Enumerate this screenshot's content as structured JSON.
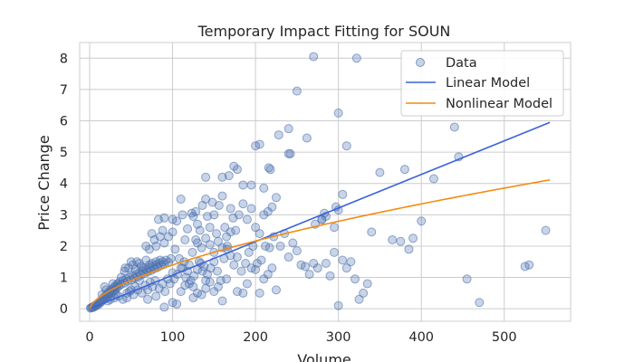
{
  "chart_data": {
    "type": "scatter",
    "title": "Temporary Impact Fitting for SOUN",
    "xlabel": "Volume",
    "ylabel": "Price Change",
    "xlim": [
      -12,
      580
    ],
    "ylim": [
      -0.4,
      8.5
    ],
    "xticks": [
      0,
      100,
      200,
      300,
      400,
      500
    ],
    "yticks": [
      0,
      1,
      2,
      3,
      4,
      5,
      6,
      7,
      8
    ],
    "grid": true,
    "legend_position": "top-right",
    "legend": [
      "Data",
      "Linear Model",
      "Nonlinear Model"
    ],
    "colors": {
      "data": "#4c72b0",
      "linear": "#3a63d8",
      "nonlinear": "#f28c12",
      "grid": "#cccccc",
      "axes_edge": "#cccccc"
    },
    "series": [
      {
        "name": "Data",
        "kind": "scatter",
        "points": [
          [
            1,
            0.02
          ],
          [
            2,
            0.03
          ],
          [
            3,
            0.05
          ],
          [
            4,
            0.04
          ],
          [
            5,
            0.06
          ],
          [
            6,
            0.1
          ],
          [
            7,
            0.08
          ],
          [
            8,
            0.12
          ],
          [
            9,
            0.15
          ],
          [
            10,
            0.12
          ],
          [
            11,
            0.2
          ],
          [
            12,
            0.18
          ],
          [
            13,
            0.25
          ],
          [
            14,
            0.22
          ],
          [
            15,
            0.3
          ],
          [
            16,
            0.28
          ],
          [
            17,
            0.35
          ],
          [
            18,
            0.32
          ],
          [
            19,
            0.4
          ],
          [
            20,
            0.36
          ],
          [
            21,
            0.42
          ],
          [
            22,
            0.5
          ],
          [
            23,
            0.45
          ],
          [
            24,
            0.55
          ],
          [
            25,
            0.48
          ],
          [
            26,
            0.6
          ],
          [
            27,
            0.52
          ],
          [
            28,
            0.65
          ],
          [
            29,
            0.58
          ],
          [
            30,
            0.7
          ],
          [
            31,
            0.6
          ],
          [
            32,
            0.75
          ],
          [
            33,
            0.68
          ],
          [
            34,
            0.8
          ],
          [
            35,
            0.72
          ],
          [
            36,
            0.85
          ],
          [
            38,
            0.78
          ],
          [
            40,
            0.9
          ],
          [
            42,
            0.82
          ],
          [
            44,
            0.95
          ],
          [
            46,
            0.88
          ],
          [
            48,
            1.0
          ],
          [
            50,
            0.92
          ],
          [
            52,
            1.05
          ],
          [
            54,
            0.98
          ],
          [
            56,
            1.1
          ],
          [
            58,
            1.02
          ],
          [
            60,
            1.15
          ],
          [
            62,
            1.08
          ],
          [
            64,
            1.2
          ],
          [
            66,
            1.12
          ],
          [
            68,
            1.25
          ],
          [
            70,
            1.18
          ],
          [
            72,
            1.3
          ],
          [
            74,
            1.22
          ],
          [
            76,
            1.35
          ],
          [
            78,
            1.28
          ],
          [
            80,
            1.4
          ],
          [
            82,
            1.32
          ],
          [
            84,
            1.45
          ],
          [
            86,
            1.38
          ],
          [
            88,
            1.5
          ],
          [
            90,
            1.42
          ],
          [
            92,
            1.55
          ],
          [
            95,
            1.48
          ],
          [
            98,
            1.6
          ],
          [
            15,
            0.45
          ],
          [
            20,
            0.6
          ],
          [
            25,
            0.3
          ],
          [
            30,
            0.35
          ],
          [
            35,
            0.4
          ],
          [
            40,
            0.3
          ],
          [
            45,
            0.5
          ],
          [
            50,
            0.6
          ],
          [
            55,
            0.7
          ],
          [
            60,
            0.9
          ],
          [
            18,
            0.7
          ],
          [
            22,
            0.25
          ],
          [
            28,
            0.8
          ],
          [
            32,
            0.45
          ],
          [
            38,
            1.0
          ],
          [
            42,
            1.2
          ],
          [
            47,
            1.3
          ],
          [
            52,
            1.4
          ],
          [
            57,
            1.5
          ],
          [
            62,
            1.35
          ],
          [
            43,
            1.3
          ],
          [
            50,
            1.5
          ],
          [
            55,
            1.25
          ],
          [
            60,
            1.45
          ],
          [
            65,
            1.3
          ],
          [
            68,
            1.55
          ],
          [
            72,
            1.4
          ],
          [
            75,
            1.45
          ],
          [
            80,
            1.5
          ],
          [
            85,
            1.55
          ],
          [
            45,
            0.35
          ],
          [
            48,
            0.55
          ],
          [
            53,
            0.45
          ],
          [
            58,
            0.6
          ],
          [
            63,
            0.5
          ],
          [
            67,
            0.75
          ],
          [
            70,
            0.6
          ],
          [
            73,
            0.85
          ],
          [
            76,
            0.7
          ],
          [
            79,
            0.9
          ],
          [
            84,
            0.65
          ],
          [
            88,
            0.8
          ],
          [
            91,
            0.55
          ],
          [
            94,
            0.95
          ],
          [
            97,
            0.8
          ],
          [
            68,
            2.0
          ],
          [
            72,
            1.9
          ],
          [
            75,
            2.4
          ],
          [
            78,
            2.2
          ],
          [
            80,
            2.0
          ],
          [
            85,
            2.3
          ],
          [
            88,
            2.5
          ],
          [
            90,
            2.1
          ],
          [
            95,
            2.3
          ],
          [
            100,
            2.45
          ],
          [
            83,
            2.85
          ],
          [
            90,
            2.9
          ],
          [
            100,
            2.85
          ],
          [
            105,
            2.8
          ],
          [
            110,
            3.5
          ],
          [
            112,
            3.0
          ],
          [
            115,
            2.2
          ],
          [
            118,
            2.55
          ],
          [
            70,
            0.3
          ],
          [
            80,
            0.4
          ],
          [
            90,
            0.05
          ],
          [
            100,
            0.2
          ],
          [
            105,
            0.15
          ],
          [
            110,
            0.55
          ],
          [
            115,
            0.75
          ],
          [
            120,
            0.8
          ],
          [
            125,
            0.35
          ],
          [
            103,
            1.9
          ],
          [
            108,
            1.6
          ],
          [
            112,
            1.3
          ],
          [
            116,
            1.0
          ],
          [
            120,
            1.4
          ],
          [
            124,
            1.8
          ],
          [
            128,
            2.2
          ],
          [
            132,
            1.5
          ],
          [
            136,
            1.2
          ],
          [
            140,
            0.9
          ],
          [
            100,
            1.15
          ],
          [
            102,
            0.95
          ],
          [
            106,
            1.1
          ],
          [
            110,
            1.3
          ],
          [
            114,
            1.5
          ],
          [
            118,
            1.2
          ],
          [
            122,
            0.9
          ],
          [
            126,
            1.05
          ],
          [
            130,
            1.25
          ],
          [
            134,
            1.45
          ],
          [
            138,
            1.35
          ],
          [
            142,
            1.1
          ],
          [
            146,
            1.3
          ],
          [
            150,
            1.5
          ],
          [
            154,
            1.2
          ],
          [
            158,
            0.9
          ],
          [
            162,
            1.6
          ],
          [
            166,
            1.9
          ],
          [
            170,
            1.7
          ],
          [
            174,
            1.4
          ],
          [
            123,
            3.05
          ],
          [
            125,
            2.95
          ],
          [
            128,
            3.1
          ],
          [
            130,
            2.7
          ],
          [
            133,
            2.5
          ],
          [
            136,
            3.3
          ],
          [
            140,
            3.5
          ],
          [
            142,
            2.95
          ],
          [
            145,
            2.6
          ],
          [
            148,
            3.4
          ],
          [
            150,
            3.0
          ],
          [
            153,
            2.4
          ],
          [
            156,
            3.3
          ],
          [
            160,
            3.6
          ],
          [
            163,
            2.6
          ],
          [
            166,
            2.0
          ],
          [
            170,
            3.2
          ],
          [
            173,
            2.9
          ],
          [
            176,
            2.5
          ],
          [
            140,
            4.2
          ],
          [
            160,
            4.2
          ],
          [
            168,
            4.25
          ],
          [
            174,
            4.55
          ],
          [
            178,
            4.45
          ],
          [
            130,
            2.1
          ],
          [
            135,
            1.95
          ],
          [
            140,
            2.25
          ],
          [
            145,
            2.05
          ],
          [
            150,
            1.8
          ],
          [
            155,
            2.15
          ],
          [
            160,
            1.95
          ],
          [
            165,
            2.3
          ],
          [
            170,
            2.45
          ],
          [
            125,
            0.7
          ],
          [
            130,
            0.5
          ],
          [
            135,
            0.45
          ],
          [
            140,
            0.65
          ],
          [
            145,
            0.85
          ],
          [
            150,
            0.55
          ],
          [
            155,
            0.7
          ],
          [
            160,
            0.25
          ],
          [
            165,
            0.95
          ],
          [
            178,
            0.55
          ],
          [
            185,
            0.5
          ],
          [
            190,
            0.8
          ],
          [
            195,
            1.3
          ],
          [
            200,
            1.25
          ],
          [
            205,
            0.5
          ],
          [
            210,
            0.95
          ],
          [
            215,
            1.1
          ],
          [
            220,
            1.3
          ],
          [
            225,
            0.6
          ],
          [
            178,
            1.65
          ],
          [
            183,
            1.2
          ],
          [
            188,
            1.45
          ],
          [
            192,
            1.8
          ],
          [
            197,
            2.0
          ],
          [
            202,
            1.45
          ],
          [
            207,
            1.55
          ],
          [
            212,
            2.0
          ],
          [
            217,
            1.95
          ],
          [
            222,
            2.3
          ],
          [
            180,
            3.0
          ],
          [
            185,
            3.35
          ],
          [
            190,
            2.85
          ],
          [
            195,
            3.2
          ],
          [
            200,
            2.6
          ],
          [
            205,
            2.4
          ],
          [
            210,
            3.0
          ],
          [
            215,
            3.1
          ],
          [
            220,
            3.25
          ],
          [
            225,
            3.55
          ],
          [
            185,
            3.95
          ],
          [
            195,
            3.95
          ],
          [
            200,
            5.2
          ],
          [
            205,
            5.25
          ],
          [
            210,
            3.85
          ],
          [
            216,
            4.5
          ],
          [
            218,
            4.45
          ],
          [
            228,
            5.55
          ],
          [
            240,
            5.75
          ],
          [
            250,
            6.95
          ],
          [
            262,
            5.45
          ],
          [
            240,
            4.95
          ],
          [
            242,
            4.95
          ],
          [
            230,
            2.0
          ],
          [
            235,
            2.4
          ],
          [
            240,
            1.65
          ],
          [
            245,
            2.1
          ],
          [
            250,
            1.85
          ],
          [
            255,
            1.4
          ],
          [
            260,
            1.35
          ],
          [
            265,
            1.1
          ],
          [
            270,
            1.45
          ],
          [
            275,
            1.3
          ],
          [
            280,
            2.85
          ],
          [
            285,
            1.45
          ],
          [
            290,
            1.05
          ],
          [
            295,
            1.8
          ],
          [
            300,
            0.1
          ],
          [
            305,
            1.55
          ],
          [
            310,
            1.3
          ],
          [
            315,
            1.5
          ],
          [
            320,
            0.95
          ],
          [
            325,
            0.3
          ],
          [
            330,
            0.5
          ],
          [
            335,
            0.8
          ],
          [
            340,
            2.45
          ],
          [
            270,
            8.05
          ],
          [
            322,
            8.0
          ],
          [
            300,
            6.25
          ],
          [
            310,
            5.2
          ],
          [
            283,
            3.05
          ],
          [
            285,
            2.95
          ],
          [
            297,
            3.25
          ],
          [
            300,
            3.15
          ],
          [
            305,
            3.65
          ],
          [
            272,
            2.7
          ],
          [
            280,
            2.85
          ],
          [
            295,
            2.6
          ],
          [
            350,
            4.35
          ],
          [
            365,
            2.2
          ],
          [
            375,
            2.15
          ],
          [
            380,
            4.45
          ],
          [
            385,
            1.9
          ],
          [
            390,
            2.25
          ],
          [
            400,
            2.8
          ],
          [
            415,
            4.15
          ],
          [
            440,
            5.8
          ],
          [
            445,
            4.85
          ],
          [
            455,
            0.95
          ],
          [
            470,
            0.2
          ],
          [
            525,
            1.35
          ],
          [
            530,
            1.4
          ],
          [
            550,
            2.5
          ]
        ]
      },
      {
        "name": "Linear Model",
        "kind": "line",
        "x": [
          0,
          555
        ],
        "y": [
          0,
          5.95
        ]
      },
      {
        "name": "Nonlinear Model",
        "kind": "line",
        "function": "y = 0.0768 * x^0.63",
        "x_range": [
          0,
          555
        ]
      }
    ]
  }
}
